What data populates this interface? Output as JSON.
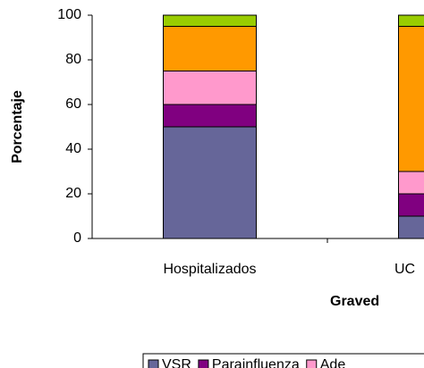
{
  "chart_data": {
    "type": "stacked-bar",
    "y_label": "Porcentaje",
    "x_label": "Graved",
    "categories": [
      "Hospitalizados",
      "UC"
    ],
    "series": [
      {
        "name": "VSR",
        "color": "#666699",
        "values": [
          50,
          10
        ]
      },
      {
        "name": "Parainfluenza",
        "color": "#800080",
        "values": [
          10,
          10
        ]
      },
      {
        "name": "Ade",
        "color": "#ff99cc",
        "values": [
          15,
          10
        ]
      },
      {
        "color": "#ff9900",
        "values": [
          20,
          65
        ]
      },
      {
        "color": "#99cc00",
        "values": [
          5,
          5
        ]
      }
    ],
    "ylim": [
      0,
      100
    ],
    "yticks": [
      0,
      20,
      40,
      60,
      80,
      100
    ]
  }
}
